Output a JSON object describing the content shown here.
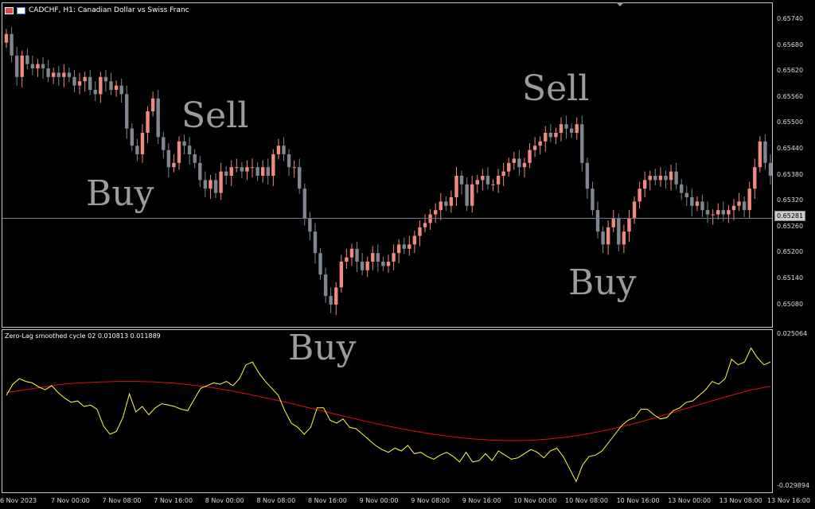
{
  "window": {
    "symbol_title": "CADCHF, H1:  Canadian Dollar vs Swiss Franc",
    "indicator_title": "Zero-Lag smoothed cycle 02 0.010813 0.011889",
    "current_price": "0.65281"
  },
  "overlays": [
    {
      "text": "Sell"
    },
    {
      "text": "Buy"
    },
    {
      "text": "Sell"
    },
    {
      "text": "Buy"
    },
    {
      "text": "Buy"
    }
  ],
  "price_axis": [
    "0.65740",
    "0.65680",
    "0.65620",
    "0.65560",
    "0.65500",
    "0.65440",
    "0.65380",
    "0.65320",
    "0.65260",
    "0.65200",
    "0.65140",
    "0.65080"
  ],
  "indicator_axis": [
    "0.025064",
    "-0.029894"
  ],
  "time_axis": [
    "6 Nov 2023",
    "7 Nov 00:00",
    "7 Nov 08:00",
    "7 Nov 16:00",
    "8 Nov 00:00",
    "8 Nov 08:00",
    "8 Nov 16:00",
    "9 Nov 00:00",
    "9 Nov 08:00",
    "9 Nov 16:00",
    "10 Nov 00:00",
    "10 Nov 08:00",
    "10 Nov 16:00",
    "13 Nov 00:00",
    "13 Nov 08:00",
    "13 Nov 16:00"
  ],
  "colors": {
    "bull_candle": "#f08a80",
    "bear_candle": "#7f868f",
    "cycle_line": "#ffff40",
    "signal_line": "#e01010",
    "price_line": "#6b7a90"
  },
  "chart_data": [
    {
      "type": "candlestick",
      "title": "CADCHF, H1:  Canadian Dollar vs Swiss Franc",
      "ylim": [
        0.6503,
        0.6578
      ],
      "close": [
        0.6571,
        0.6566,
        0.6561,
        0.6566,
        0.6564,
        0.6563,
        0.6564,
        0.6563,
        0.6561,
        0.6562,
        0.6561,
        0.6562,
        0.6561,
        0.6559,
        0.656,
        0.6561,
        0.6558,
        0.6557,
        0.6561,
        0.656,
        0.6558,
        0.6559,
        0.6557,
        0.6549,
        0.6545,
        0.6543,
        0.6548,
        0.6553,
        0.6556,
        0.6547,
        0.6544,
        0.654,
        0.6541,
        0.6546,
        0.6545,
        0.6543,
        0.6541,
        0.6537,
        0.6535,
        0.6537,
        0.6534,
        0.6539,
        0.6538,
        0.654,
        0.654,
        0.6539,
        0.654,
        0.654,
        0.6538,
        0.654,
        0.6538,
        0.6543,
        0.6545,
        0.6543,
        0.654,
        0.654,
        0.6535,
        0.6528,
        0.6525,
        0.652,
        0.6515,
        0.651,
        0.6508,
        0.6512,
        0.6518,
        0.6519,
        0.6521,
        0.6518,
        0.6516,
        0.6518,
        0.652,
        0.6518,
        0.6517,
        0.6518,
        0.652,
        0.6522,
        0.6521,
        0.6522,
        0.6524,
        0.6526,
        0.6527,
        0.6529,
        0.653,
        0.6532,
        0.6531,
        0.6533,
        0.6538,
        0.6536,
        0.6531,
        0.6536,
        0.6537,
        0.6538,
        0.6536,
        0.6536,
        0.6538,
        0.6539,
        0.6541,
        0.6542,
        0.654,
        0.6541,
        0.6544,
        0.6545,
        0.6546,
        0.6548,
        0.6547,
        0.6548,
        0.655,
        0.6549,
        0.6548,
        0.655,
        0.6541,
        0.6535,
        0.653,
        0.6525,
        0.6522,
        0.6526,
        0.6528,
        0.6522,
        0.6525,
        0.6528,
        0.6532,
        0.6535,
        0.6537,
        0.6538,
        0.6537,
        0.6538,
        0.6537,
        0.6539,
        0.6536,
        0.6534,
        0.6533,
        0.6531,
        0.6532,
        0.653,
        0.6529,
        0.6529,
        0.653,
        0.6529,
        0.653,
        0.6531,
        0.6532,
        0.653,
        0.6535,
        0.654,
        0.6546,
        0.6541,
        0.6538
      ],
      "ylabel": ""
    },
    {
      "type": "line",
      "title": "Zero-Lag smoothed cycle 02 0.010813 0.011889",
      "ylim": [
        -0.029894,
        0.025064
      ],
      "series": [
        {
          "values": [
            0.003,
            0.007,
            0.009,
            0.008,
            0.0075,
            0.006,
            0.005,
            0.0065,
            0.004,
            0.002,
            0.0005,
            0.001,
            -0.001,
            -0.0005,
            -0.002,
            -0.008,
            -0.011,
            -0.01,
            -0.005,
            0.0035,
            -0.003,
            -0.001,
            -0.004,
            -0.0015,
            0.0,
            -0.0005,
            -0.001,
            -0.002,
            -0.0025,
            0.0015,
            0.0055,
            0.0065,
            0.0075,
            0.007,
            0.008,
            0.0065,
            0.009,
            0.014,
            0.015,
            0.011,
            0.008,
            0.0055,
            0.003,
            -0.0025,
            -0.007,
            -0.0085,
            -0.011,
            -0.0085,
            -0.0015,
            -0.0015,
            -0.006,
            -0.007,
            -0.0055,
            -0.0085,
            -0.009,
            -0.011,
            -0.013,
            -0.015,
            -0.0165,
            -0.0175,
            -0.016,
            -0.017,
            -0.015,
            -0.018,
            -0.0175,
            -0.019,
            -0.02,
            -0.0185,
            -0.0175,
            -0.019,
            -0.021,
            -0.0175,
            -0.021,
            -0.0205,
            -0.018,
            -0.0205,
            -0.017,
            -0.0185,
            -0.02,
            -0.0195,
            -0.018,
            -0.0165,
            -0.0175,
            -0.0195,
            -0.017,
            -0.016,
            -0.019,
            -0.0235,
            -0.028,
            -0.022,
            -0.019,
            -0.0185,
            -0.017,
            -0.014,
            -0.011,
            -0.008,
            -0.006,
            -0.005,
            -0.002,
            -0.002,
            -0.004,
            -0.0055,
            -0.005,
            -0.0025,
            -0.0015,
            0.0005,
            0.001,
            0.003,
            0.005,
            0.008,
            0.007,
            0.009,
            0.016,
            0.014,
            0.015,
            0.02,
            0.0165,
            0.014,
            0.015
          ]
        },
        {
          "values": [
            0.004,
            0.005,
            0.006,
            0.007,
            0.0075,
            0.0078,
            0.008,
            0.008,
            0.0078,
            0.0074,
            0.0067,
            0.0058,
            0.0047,
            0.0034,
            0.002,
            0.0005,
            -0.0011,
            -0.0027,
            -0.0043,
            -0.0059,
            -0.0074,
            -0.0088,
            -0.01,
            -0.0111,
            -0.012,
            -0.0127,
            -0.0131,
            -0.0133,
            -0.0132,
            -0.0128,
            -0.0121,
            -0.0111,
            -0.0098,
            -0.0083,
            -0.0066,
            -0.0047,
            -0.0027,
            -0.0007,
            0.0013,
            0.0032,
            0.005,
            0.0063
          ]
        }
      ]
    }
  ]
}
